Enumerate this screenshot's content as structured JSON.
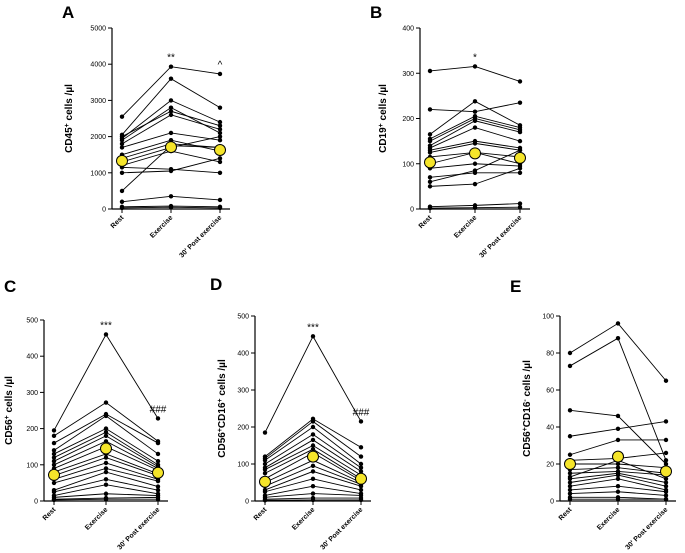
{
  "chart_data": [
    {
      "type": "line",
      "panel": "A",
      "ylabel_main": "CD45",
      "ylabel_sup": "+",
      "ylabel_tail": " cells /µl",
      "ylim": [
        0,
        5000
      ],
      "yticks": [
        0,
        1000,
        2000,
        3000,
        4000,
        5000
      ],
      "categories": [
        "Rest",
        "Exercise",
        "30' Post exercise"
      ],
      "annotations": [
        {
          "x": 1,
          "text": "**"
        },
        {
          "x": 2,
          "text": "^"
        }
      ],
      "subjects": [
        [
          2550,
          3930,
          3730
        ],
        [
          2050,
          3600,
          2800
        ],
        [
          1950,
          3000,
          2400
        ],
        [
          1900,
          2800,
          2100
        ],
        [
          2000,
          2700,
          2300
        ],
        [
          1800,
          2600,
          2200
        ],
        [
          1700,
          2100,
          1900
        ],
        [
          1500,
          1900,
          1600
        ],
        [
          1400,
          1800,
          1700
        ],
        [
          1300,
          1700,
          2000
        ],
        [
          1200,
          1600,
          1300
        ],
        [
          1150,
          1100,
          1000
        ],
        [
          1000,
          1050,
          1400
        ],
        [
          500,
          1750,
          1700
        ],
        [
          200,
          350,
          250
        ],
        [
          60,
          80,
          60
        ],
        [
          30,
          50,
          30
        ]
      ],
      "mean": [
        1330,
        1710,
        1630
      ]
    },
    {
      "type": "line",
      "panel": "B",
      "ylabel_main": "CD19",
      "ylabel_sup": "+",
      "ylabel_tail": " cells /µl",
      "ylim": [
        0,
        400
      ],
      "yticks": [
        0,
        100,
        200,
        300,
        400
      ],
      "categories": [
        "Rest",
        "Exercise",
        "30' Post exercise"
      ],
      "annotations": [
        {
          "x": 1,
          "text": "*"
        }
      ],
      "subjects": [
        [
          305,
          315,
          282
        ],
        [
          220,
          215,
          235
        ],
        [
          165,
          238,
          185
        ],
        [
          155,
          205,
          180
        ],
        [
          150,
          200,
          175
        ],
        [
          140,
          195,
          170
        ],
        [
          135,
          180,
          150
        ],
        [
          130,
          150,
          135
        ],
        [
          125,
          145,
          130
        ],
        [
          115,
          125,
          115
        ],
        [
          100,
          125,
          100
        ],
        [
          90,
          100,
          95
        ],
        [
          70,
          80,
          80
        ],
        [
          60,
          85,
          130
        ],
        [
          50,
          55,
          90
        ],
        [
          5,
          8,
          12
        ],
        [
          2,
          3,
          4
        ]
      ],
      "mean": [
        103,
        123,
        113
      ]
    },
    {
      "type": "line",
      "panel": "C",
      "ylabel_main": "CD56",
      "ylabel_sup": "+",
      "ylabel_tail": " cells /µl",
      "ylim": [
        0,
        500
      ],
      "yticks": [
        0,
        100,
        200,
        300,
        400,
        500
      ],
      "categories": [
        "Rest",
        "Exercise",
        "30' Post exercise"
      ],
      "annotations": [
        {
          "x": 1,
          "text": "***"
        },
        {
          "x": 2,
          "text": "###"
        }
      ],
      "subjects": [
        [
          195,
          460,
          228
        ],
        [
          180,
          272,
          165
        ],
        [
          160,
          240,
          160
        ],
        [
          140,
          235,
          130
        ],
        [
          130,
          200,
          110
        ],
        [
          120,
          190,
          100
        ],
        [
          110,
          180,
          95
        ],
        [
          100,
          165,
          90
        ],
        [
          90,
          150,
          85
        ],
        [
          80,
          130,
          75
        ],
        [
          70,
          120,
          70
        ],
        [
          60,
          105,
          60
        ],
        [
          50,
          90,
          55
        ],
        [
          30,
          80,
          40
        ],
        [
          25,
          60,
          30
        ],
        [
          15,
          45,
          20
        ],
        [
          10,
          20,
          15
        ],
        [
          5,
          8,
          10
        ],
        [
          3,
          5,
          5
        ]
      ],
      "mean": [
        72,
        145,
        78
      ]
    },
    {
      "type": "line",
      "panel": "D",
      "ylabel_main": "CD56",
      "ylabel_sup": "+",
      "ylabel_mid": "CD16",
      "ylabel_sup2": "+",
      "ylabel_tail": " cells /µl",
      "ylim": [
        0,
        500
      ],
      "yticks": [
        0,
        100,
        200,
        300,
        400,
        500
      ],
      "categories": [
        "Rest",
        "Exercise",
        "30' Post exercise"
      ],
      "annotations": [
        {
          "x": 1,
          "text": "***"
        },
        {
          "x": 2,
          "text": "###"
        }
      ],
      "subjects": [
        [
          185,
          445,
          215
        ],
        [
          120,
          222,
          145
        ],
        [
          115,
          215,
          120
        ],
        [
          110,
          200,
          100
        ],
        [
          100,
          180,
          90
        ],
        [
          90,
          165,
          80
        ],
        [
          85,
          150,
          70
        ],
        [
          75,
          140,
          60
        ],
        [
          60,
          130,
          55
        ],
        [
          50,
          110,
          50
        ],
        [
          40,
          95,
          45
        ],
        [
          30,
          80,
          40
        ],
        [
          25,
          60,
          30
        ],
        [
          15,
          40,
          20
        ],
        [
          10,
          20,
          15
        ],
        [
          5,
          8,
          8
        ],
        [
          2,
          3,
          3
        ]
      ],
      "mean": [
        52,
        120,
        60
      ]
    },
    {
      "type": "line",
      "panel": "E",
      "ylabel_main": "CD56",
      "ylabel_sup": "+",
      "ylabel_mid": "CD16",
      "ylabel_sup2": "-",
      "ylabel_tail": " cells /µl",
      "ylim": [
        0,
        100
      ],
      "yticks": [
        0,
        20,
        40,
        60,
        80,
        100
      ],
      "categories": [
        "Rest",
        "Exercise",
        "30' Post exercise"
      ],
      "annotations": [],
      "subjects": [
        [
          80,
          96,
          65
        ],
        [
          73,
          88,
          22
        ],
        [
          49,
          46,
          20
        ],
        [
          35,
          39,
          43
        ],
        [
          25,
          33,
          33
        ],
        [
          22,
          23,
          26
        ],
        [
          20,
          20,
          18
        ],
        [
          17,
          18,
          15
        ],
        [
          15,
          16,
          14
        ],
        [
          13,
          22,
          12
        ],
        [
          12,
          15,
          10
        ],
        [
          10,
          14,
          8
        ],
        [
          8,
          12,
          6
        ],
        [
          6,
          8,
          5
        ],
        [
          4,
          5,
          3
        ],
        [
          2,
          2,
          1
        ],
        [
          1,
          1,
          1
        ]
      ],
      "mean": [
        20,
        24,
        16
      ]
    }
  ]
}
